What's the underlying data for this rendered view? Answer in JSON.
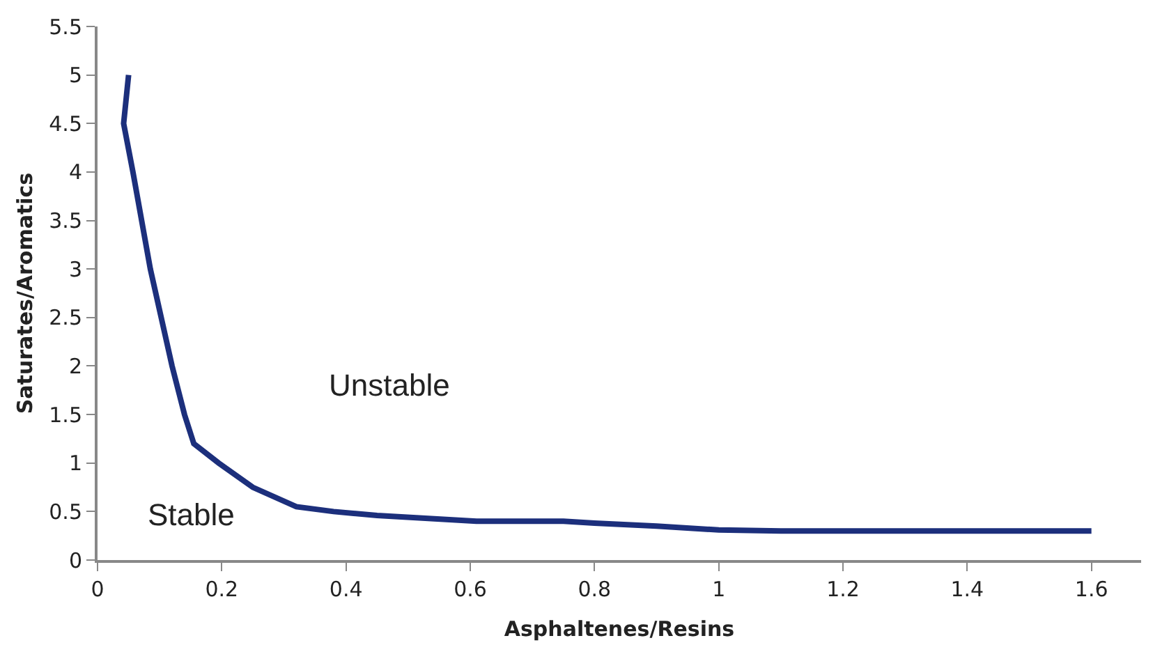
{
  "chart_data": {
    "type": "line",
    "xlabel": "Asphaltenes/Resins",
    "ylabel": "Saturates/Aromatics",
    "annotations": [
      "Unstable",
      "Stable"
    ],
    "x": [
      0.05,
      0.042,
      0.057,
      0.085,
      0.12,
      0.14,
      0.155,
      0.195,
      0.25,
      0.32,
      0.38,
      0.45,
      0.61,
      0.75,
      0.8,
      0.9,
      1.0,
      1.1,
      1.3,
      1.6
    ],
    "series": [
      {
        "color": "#1c2f7c",
        "values": [
          5.0,
          4.5,
          4.0,
          3.0,
          2.0,
          1.5,
          1.2,
          1.0,
          0.75,
          0.55,
          0.5,
          0.46,
          0.4,
          0.4,
          0.38,
          0.35,
          0.31,
          0.3,
          0.3,
          0.3
        ]
      }
    ],
    "xlim": [
      0,
      1.68
    ],
    "xticks": [
      0,
      0.2,
      0.4,
      0.6,
      0.8,
      1,
      1.2,
      1.4,
      1.6
    ],
    "ylim": [
      0,
      5.5
    ],
    "yticks": [
      0,
      0.5,
      1,
      1.5,
      2,
      2.5,
      3,
      3.5,
      4,
      4.5,
      5,
      5.5
    ],
    "marker": "none",
    "line_style": "solid"
  }
}
